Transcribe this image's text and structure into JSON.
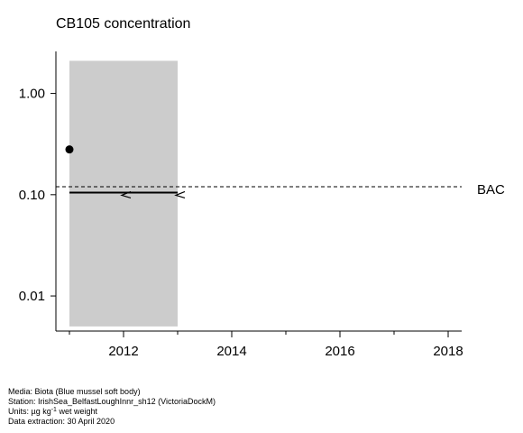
{
  "chart_data": {
    "type": "scatter",
    "title": "CB105 concentration",
    "y_scale": "log",
    "xlim": [
      2010.75,
      2018.25
    ],
    "ylim": [
      0.0045,
      2.6
    ],
    "x_ticks_major": [
      2012,
      2014,
      2016,
      2018
    ],
    "x_tick_labels": [
      "2012",
      "2014",
      "2016",
      "2018"
    ],
    "x_ticks_minor": [
      2011,
      2013,
      2015,
      2017
    ],
    "y_ticks": [
      0.01,
      0.1,
      1
    ],
    "y_tick_labels": [
      "0.01",
      "0.10",
      "1.00"
    ],
    "points": [
      {
        "x": 2011,
        "y": 0.28
      }
    ],
    "shaded_band": {
      "x_start": 2011,
      "x_end": 2013,
      "y_low": 0.005,
      "y_high": 2.1,
      "color": "#cccccc"
    },
    "trend_segment": {
      "x_start": 2011,
      "x_end": 2013,
      "y": 0.105,
      "marker": "<"
    },
    "reference_lines": [
      {
        "label": "BAC",
        "y": 0.12,
        "style": "dashed"
      }
    ],
    "grid": false
  },
  "footer": {
    "media": "Media: Biota (Blue mussel soft body)",
    "station": "Station: IrishSea_BelfastLoughInnr_sh12 (VictoriaDockM)",
    "units_prefix": "Units: µg kg",
    "units_exp": "-1",
    "units_suffix": " wet weight",
    "extraction": "Data extraction: 30 April 2020"
  }
}
